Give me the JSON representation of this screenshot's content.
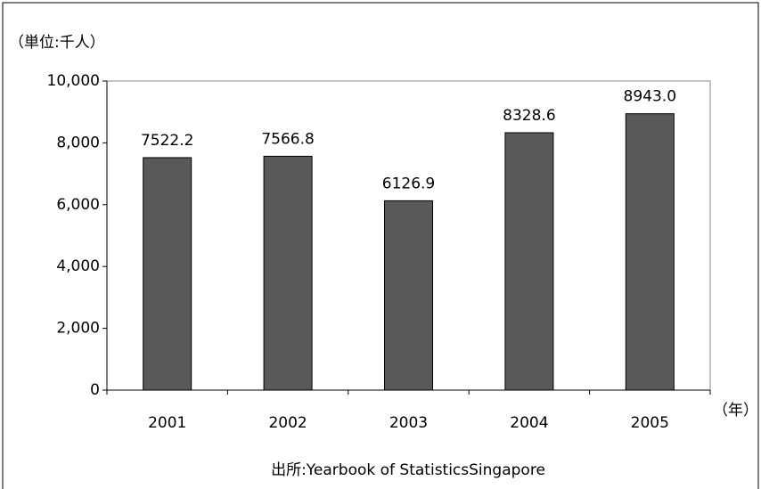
{
  "chart_data": {
    "type": "bar",
    "unit_label": "（単位:千人）",
    "x_unit_label": "（年）",
    "source": "出所:Yearbook of StatisticsSingapore",
    "categories": [
      "2001",
      "2002",
      "2003",
      "2004",
      "2005"
    ],
    "values": [
      7522.2,
      7566.8,
      6126.9,
      8328.6,
      8943.0
    ],
    "value_labels": [
      "7522.2",
      "7566.8",
      "6126.9",
      "8328.6",
      "8943.0"
    ],
    "color": "#595959",
    "ylim": [
      0,
      10000
    ],
    "yticks": [
      0,
      {
        "value": 2000,
        "label": "2,000"
      },
      {
        "value": 4000,
        "label": "4,000"
      },
      {
        "value": 6000,
        "label": "6,000"
      },
      {
        "value": 8000,
        "label": "8,000"
      },
      {
        "value": 10000,
        "label": "10,000"
      }
    ],
    "grid": false
  }
}
